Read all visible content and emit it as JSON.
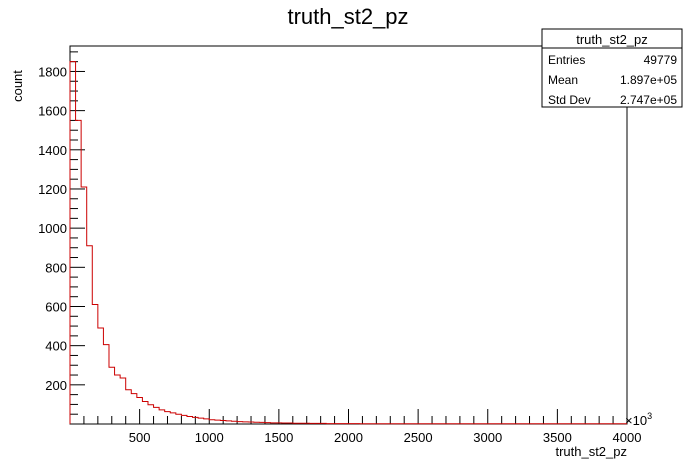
{
  "chart_data": {
    "type": "histogram",
    "title": "truth_st2_pz",
    "xlabel": "truth_st2_pz",
    "ylabel": "count",
    "x_multiplier": "×10",
    "x_multiplier_exp": "3",
    "xlim": [
      0,
      4000
    ],
    "ylim": [
      0,
      1930
    ],
    "x_ticks": [
      500,
      1000,
      1500,
      2000,
      2500,
      3000,
      3500,
      4000
    ],
    "y_ticks": [
      200,
      400,
      600,
      800,
      1000,
      1200,
      1400,
      1600,
      1800
    ],
    "bin_width": 40,
    "counts": [
      1850,
      1550,
      1210,
      910,
      610,
      490,
      405,
      290,
      250,
      235,
      175,
      155,
      135,
      115,
      98,
      85,
      72,
      63,
      57,
      50,
      44,
      38,
      34,
      30,
      26,
      22,
      20,
      18,
      16,
      14,
      12,
      11,
      10,
      9,
      8,
      7,
      6,
      6,
      5,
      5,
      4,
      4,
      4,
      3,
      3,
      3,
      2,
      2,
      2,
      2,
      2,
      2,
      1,
      1,
      1,
      1,
      1,
      1,
      1,
      1,
      1,
      1,
      1,
      1,
      1,
      1,
      1,
      1,
      1,
      1,
      1,
      1,
      1,
      1,
      1,
      1,
      1,
      1,
      1,
      1,
      1,
      1,
      1,
      1,
      1,
      1,
      1,
      1,
      1,
      1,
      1,
      1,
      1,
      1,
      1,
      1,
      1,
      1,
      1,
      1
    ],
    "line_color": "#cc0000",
    "grid": false,
    "stats_box": {
      "title": "truth_st2_pz",
      "rows": [
        {
          "label": "Entries",
          "value": "49779"
        },
        {
          "label": "Mean",
          "value": "1.897e+05"
        },
        {
          "label": "Std Dev",
          "value": "2.747e+05"
        }
      ],
      "placement": "top-right"
    }
  }
}
